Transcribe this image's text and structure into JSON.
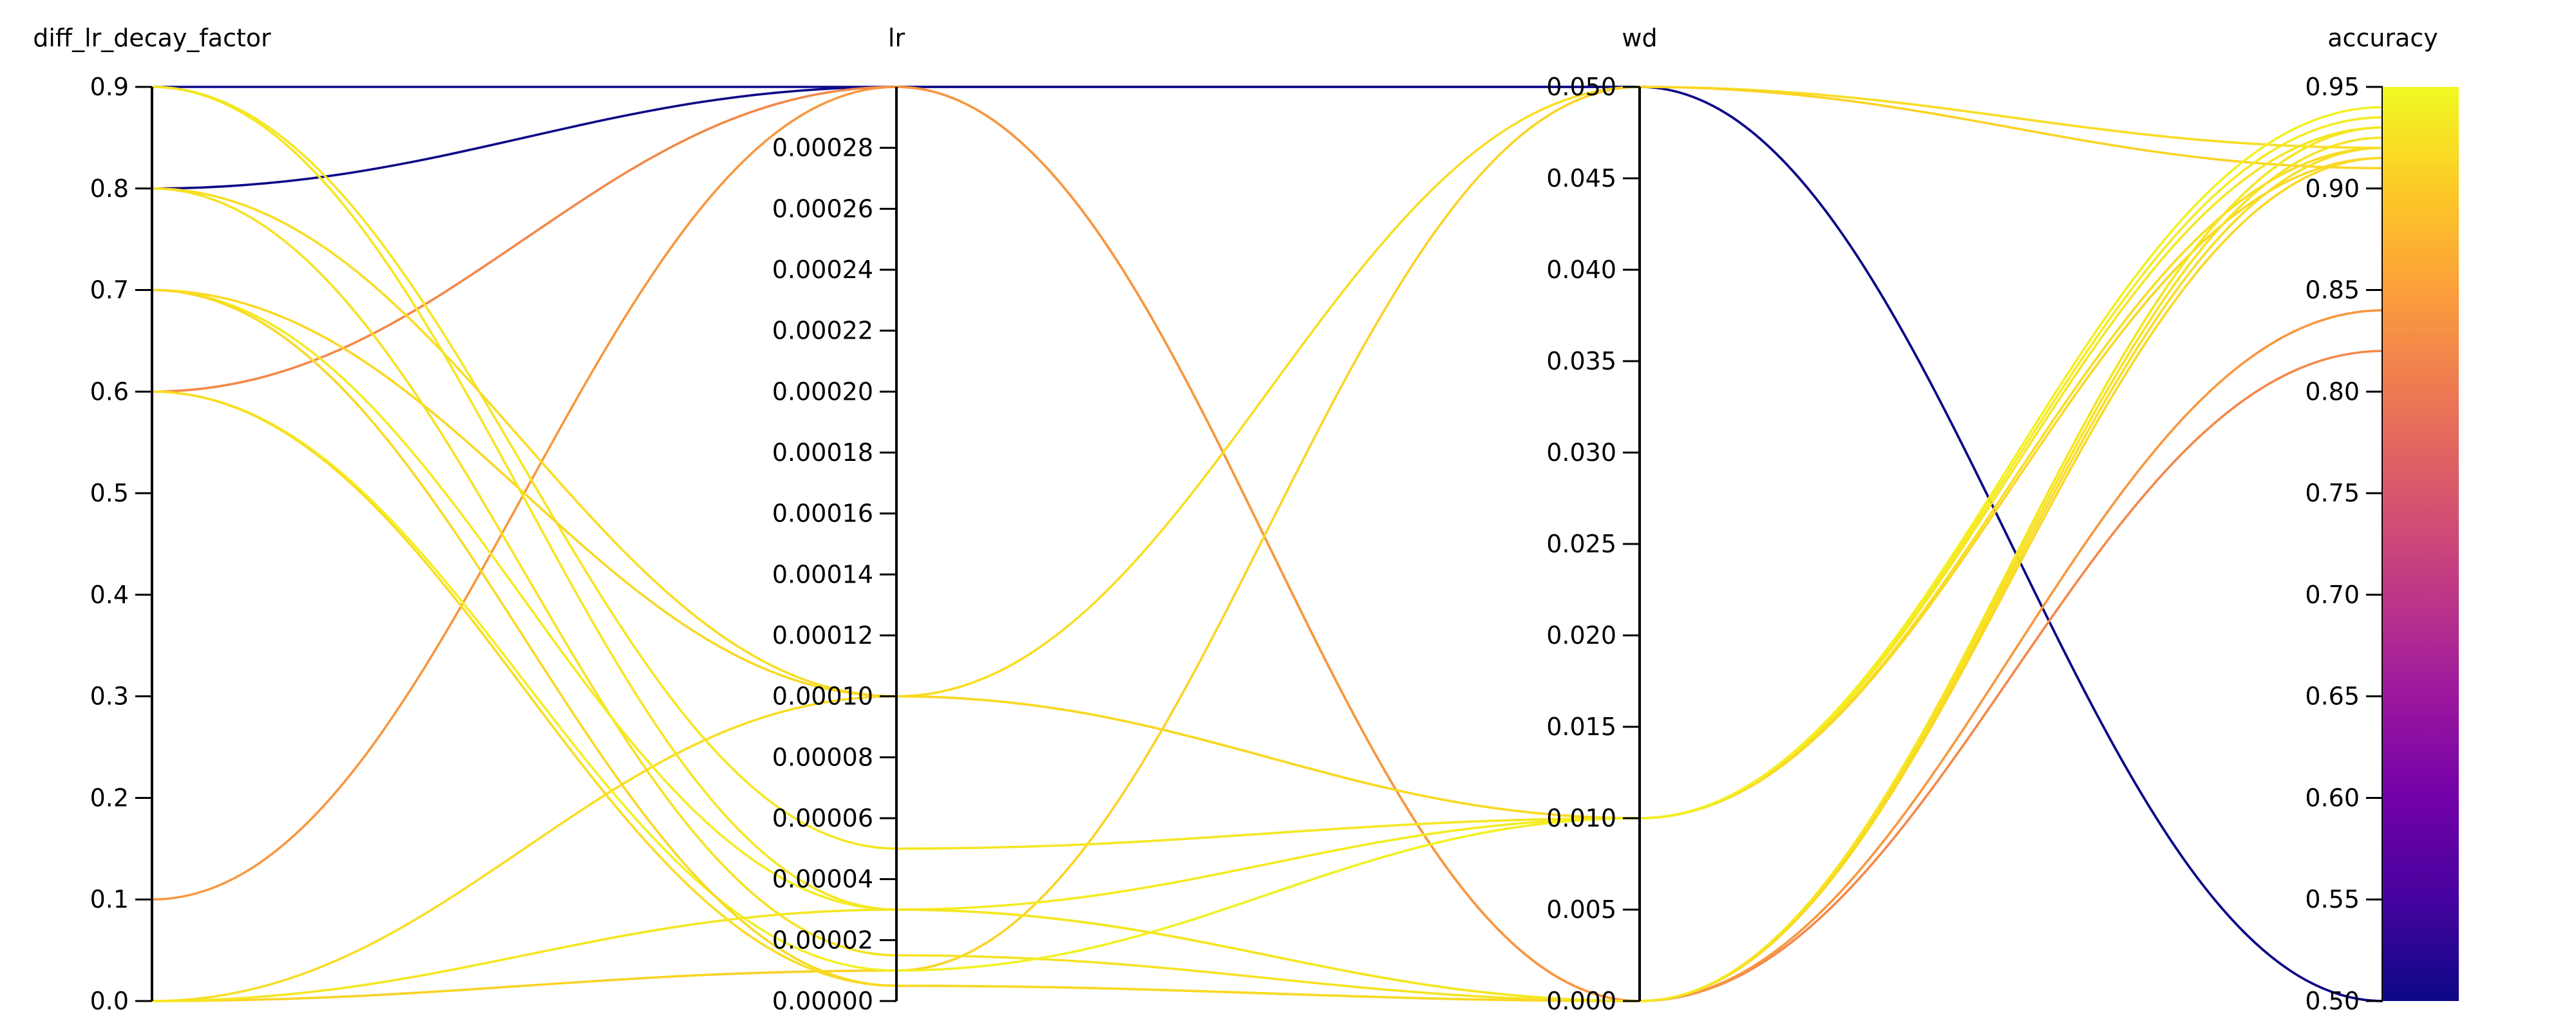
{
  "chart_data": {
    "type": "parallel_coordinates",
    "axes": [
      {
        "name": "diff_lr_decay_factor",
        "range": [
          0,
          0.9
        ],
        "ticks": [
          "0.0",
          "0.1",
          "0.2",
          "0.3",
          "0.4",
          "0.5",
          "0.6",
          "0.7",
          "0.8",
          "0.9"
        ]
      },
      {
        "name": "lr",
        "range": [
          0,
          0.0003
        ],
        "ticks": [
          "0.00000",
          "0.00002",
          "0.00004",
          "0.00006",
          "0.00008",
          "0.00010",
          "0.00012",
          "0.00014",
          "0.00016",
          "0.00018",
          "0.00020",
          "0.00022",
          "0.00024",
          "0.00026",
          "0.00028"
        ]
      },
      {
        "name": "wd",
        "range": [
          0,
          0.05
        ],
        "ticks": [
          "0.000",
          "0.005",
          "0.010",
          "0.015",
          "0.020",
          "0.025",
          "0.030",
          "0.035",
          "0.040",
          "0.045",
          "0.050"
        ]
      },
      {
        "name": "accuracy",
        "range": [
          0.5,
          0.95
        ],
        "ticks": [
          "0.50",
          "0.55",
          "0.60",
          "0.65",
          "0.70",
          "0.75",
          "0.80",
          "0.85",
          "0.90",
          "0.95"
        ]
      }
    ],
    "colorbar": {
      "colorscale": "plasma",
      "range": [
        0.5,
        0.95
      ],
      "stops": [
        "#0d0887",
        "#46039f",
        "#7201a8",
        "#9c179e",
        "#bd3786",
        "#d8576b",
        "#ed7953",
        "#fb9f3a",
        "#fdca26",
        "#f0f921"
      ]
    },
    "series": [
      {
        "values": [
          0.8,
          0.0003,
          0.05,
          0.5
        ]
      },
      {
        "values": [
          0.9,
          0.0003,
          0.05,
          0.5
        ]
      },
      {
        "values": [
          0.6,
          0.0003,
          0.0,
          0.82
        ]
      },
      {
        "values": [
          0.1,
          0.0003,
          0.0,
          0.84
        ]
      },
      {
        "values": [
          0.0,
          0.0001,
          0.05,
          0.92
        ]
      },
      {
        "values": [
          0.0,
          1e-05,
          0.05,
          0.91
        ]
      },
      {
        "values": [
          0.9,
          5e-05,
          0.01,
          0.93
        ]
      },
      {
        "values": [
          0.8,
          0.0001,
          0.01,
          0.92
        ]
      },
      {
        "values": [
          0.7,
          0.0001,
          0.01,
          0.915
        ]
      },
      {
        "values": [
          0.9,
          3e-05,
          0.0,
          0.93
        ]
      },
      {
        "values": [
          0.8,
          1.5e-05,
          0.0,
          0.925
        ]
      },
      {
        "values": [
          0.7,
          3e-05,
          0.01,
          0.935
        ]
      },
      {
        "values": [
          0.6,
          1e-05,
          0.01,
          0.94
        ]
      },
      {
        "values": [
          0.6,
          5e-06,
          0.0,
          0.92
        ]
      },
      {
        "values": [
          0.7,
          5e-06,
          0.0,
          0.915
        ]
      },
      {
        "values": [
          0.0,
          3e-05,
          0.0,
          0.93
        ]
      }
    ]
  }
}
